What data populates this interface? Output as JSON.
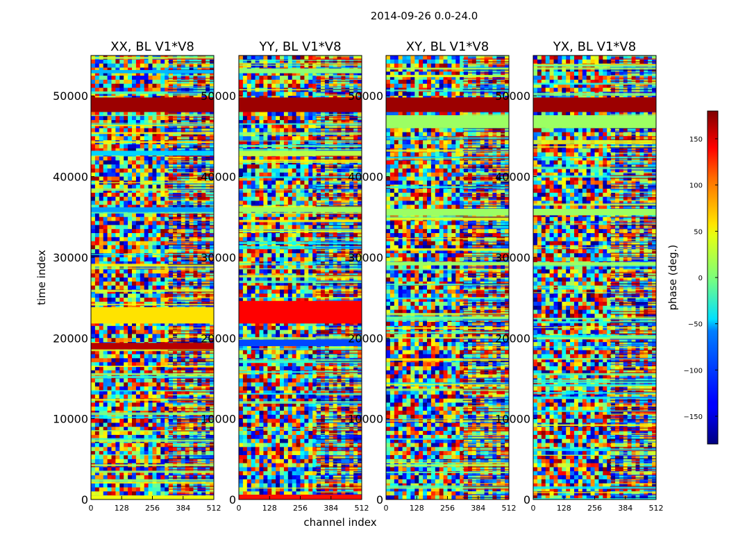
{
  "chart_data": {
    "type": "heatmap",
    "suptitle": "2014-09-26 0.0-24.0",
    "xlabel": "channel index",
    "ylabel": "time index",
    "xlim": [
      0,
      512
    ],
    "ylim": [
      0,
      55000
    ],
    "xticks": [
      0,
      128,
      256,
      384,
      512
    ],
    "yticks": [
      0,
      10000,
      20000,
      30000,
      40000,
      50000
    ],
    "panels": [
      {
        "title": "XX, BL V1*V8",
        "split_channel": 320,
        "bands": [
          {
            "y0": 48000,
            "y1": 49800,
            "phase": 170
          },
          {
            "y0": 18600,
            "y1": 19400,
            "phase": 160
          },
          {
            "y0": 21800,
            "y1": 23800,
            "phase": 55
          },
          {
            "y0": 35600,
            "y1": 36200,
            "phase": -80
          },
          {
            "y0": 42600,
            "y1": 43200,
            "phase": -60
          },
          {
            "y0": 52800,
            "y1": 53200,
            "phase": -70
          },
          {
            "y0": 0,
            "y1": 500,
            "phase": 40
          }
        ]
      },
      {
        "title": "YY, BL V1*V8",
        "split_channel": 320,
        "bands": [
          {
            "y0": 48000,
            "y1": 49800,
            "phase": 170
          },
          {
            "y0": 19000,
            "y1": 19800,
            "phase": -110
          },
          {
            "y0": 21800,
            "y1": 24600,
            "phase": 135
          },
          {
            "y0": 35600,
            "y1": 36200,
            "phase": 10
          },
          {
            "y0": 42600,
            "y1": 43200,
            "phase": 20
          },
          {
            "y0": 52800,
            "y1": 53400,
            "phase": 5
          },
          {
            "y0": 0,
            "y1": 600,
            "phase": 130
          }
        ]
      },
      {
        "title": "XY, BL V1*V8",
        "split_channel": 320,
        "bands": [
          {
            "y0": 48000,
            "y1": 49800,
            "phase": 170
          },
          {
            "y0": 35200,
            "y1": 36000,
            "phase": 10
          },
          {
            "y0": 29000,
            "y1": 29400,
            "phase": 10
          },
          {
            "y0": 46000,
            "y1": 47600,
            "phase": 10
          }
        ]
      },
      {
        "title": "YX, BL V1*V8",
        "split_channel": 320,
        "bands": [
          {
            "y0": 48000,
            "y1": 49800,
            "phase": 170
          },
          {
            "y0": 35200,
            "y1": 36000,
            "phase": 10
          },
          {
            "y0": 29000,
            "y1": 29400,
            "phase": 10
          },
          {
            "y0": 46000,
            "y1": 47600,
            "phase": 10
          }
        ]
      }
    ],
    "colorbar": {
      "label": "phase (deg.)",
      "range": [
        -180,
        180
      ],
      "ticks": [
        150,
        100,
        50,
        0,
        -50,
        -100,
        -150
      ],
      "tick_labels": [
        "150",
        "100",
        "50",
        "0",
        "−50",
        "−100",
        "−150"
      ],
      "colormap": "jet"
    }
  }
}
